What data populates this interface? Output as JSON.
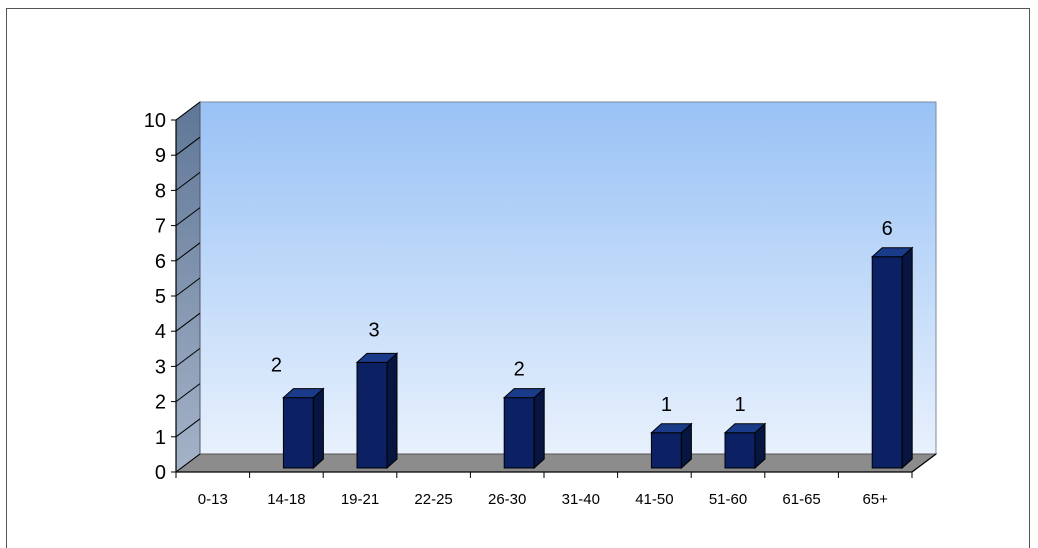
{
  "chart_data": {
    "type": "bar",
    "categories": [
      "0-13",
      "14-18",
      "19-21",
      "22-25",
      "26-30",
      "31-40",
      "41-50",
      "51-60",
      "61-65",
      "65+"
    ],
    "values": [
      0,
      2,
      3,
      0,
      2,
      0,
      1,
      1,
      0,
      6
    ],
    "data_labels": [
      "",
      "2",
      "3",
      "",
      "2",
      "",
      "1",
      "1",
      "",
      "6"
    ],
    "yticks": [
      "0",
      "1",
      "2",
      "3",
      "4",
      "5",
      "6",
      "7",
      "8",
      "9",
      "10"
    ],
    "ylim": [
      0,
      10
    ],
    "title": "",
    "xlabel": "",
    "ylabel": "",
    "grid": false,
    "legend": "none",
    "style": "3d-column",
    "colors": {
      "bar_front": "#0b2163",
      "bar_side": "#061640",
      "bar_top": "#1a3a8a",
      "wall_top": "#99c2f5",
      "wall_bottom": "#e8f1fd",
      "side_wall": "#6f86a8",
      "floor": "#8c8c8c"
    }
  }
}
